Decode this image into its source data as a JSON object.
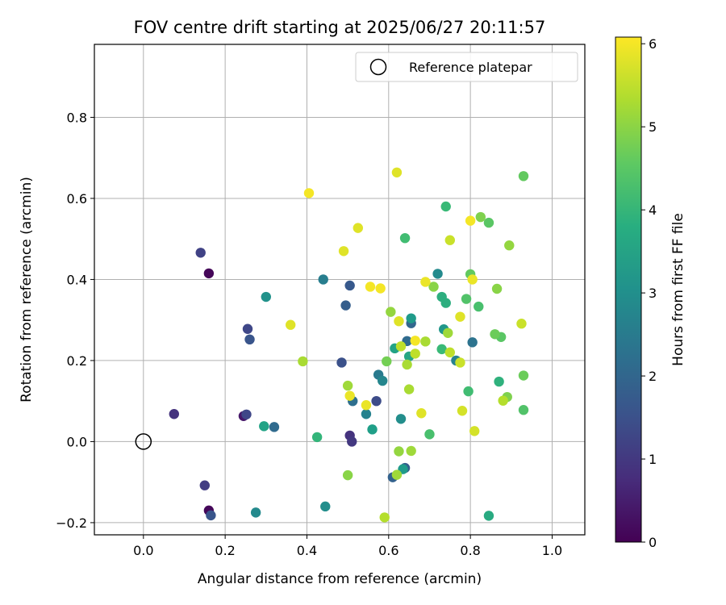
{
  "chart_data": {
    "type": "scatter",
    "title": "FOV centre drift starting at 2025/06/27 20:11:57",
    "xlabel": "Angular distance from reference (arcmin)",
    "ylabel": "Rotation from reference (arcmin)",
    "xlim": [
      -0.12,
      1.08
    ],
    "ylim": [
      -0.23,
      0.98
    ],
    "xticks": [
      0.0,
      0.2,
      0.4,
      0.6,
      0.8,
      1.0
    ],
    "xtick_labels": [
      "0.0",
      "0.2",
      "0.4",
      "0.6",
      "0.8",
      "1.0"
    ],
    "yticks": [
      -0.2,
      0.0,
      0.2,
      0.4,
      0.6,
      0.8
    ],
    "ytick_labels": [
      "−0.2",
      "0.0",
      "0.2",
      "0.4",
      "0.6",
      "0.8"
    ],
    "grid": true,
    "colormap": "viridis",
    "colorbar": {
      "label": "Hours from first FF file",
      "range": [
        0,
        6.08
      ],
      "ticks": [
        0,
        1,
        2,
        3,
        4,
        5,
        6
      ],
      "tick_labels": [
        "0",
        "1",
        "2",
        "3",
        "4",
        "5",
        "6"
      ]
    },
    "legend": {
      "placement": "top-right",
      "entries": [
        {
          "label": "Reference platepar",
          "marker": "open-circle"
        }
      ]
    },
    "reference_point": {
      "x": 0.0,
      "y": 0.0
    },
    "points": [
      {
        "x": 0.16,
        "y": 0.415,
        "h": 0.1
      },
      {
        "x": 0.16,
        "y": -0.17,
        "h": 0.1
      },
      {
        "x": 0.245,
        "y": 0.063,
        "h": 0.4
      },
      {
        "x": 0.075,
        "y": 0.068,
        "h": 0.9
      },
      {
        "x": 0.505,
        "y": 0.015,
        "h": 0.9
      },
      {
        "x": 0.51,
        "y": 0.0,
        "h": 1.0
      },
      {
        "x": 0.15,
        "y": -0.108,
        "h": 1.1
      },
      {
        "x": 0.14,
        "y": 0.466,
        "h": 1.2
      },
      {
        "x": 0.255,
        "y": 0.278,
        "h": 1.3
      },
      {
        "x": 0.252,
        "y": 0.067,
        "h": 1.3
      },
      {
        "x": 0.57,
        "y": 0.1,
        "h": 1.4
      },
      {
        "x": 0.485,
        "y": 0.195,
        "h": 1.5
      },
      {
        "x": 0.165,
        "y": -0.182,
        "h": 1.6
      },
      {
        "x": 0.26,
        "y": 0.252,
        "h": 1.6
      },
      {
        "x": 0.505,
        "y": 0.385,
        "h": 1.7
      },
      {
        "x": 0.495,
        "y": 0.336,
        "h": 1.8
      },
      {
        "x": 0.64,
        "y": -0.065,
        "h": 1.8
      },
      {
        "x": 0.61,
        "y": -0.088,
        "h": 1.9
      },
      {
        "x": 0.655,
        "y": 0.292,
        "h": 2.0
      },
      {
        "x": 0.32,
        "y": 0.036,
        "h": 2.1
      },
      {
        "x": 0.645,
        "y": 0.248,
        "h": 2.1
      },
      {
        "x": 0.512,
        "y": 0.1,
        "h": 2.2
      },
      {
        "x": 0.805,
        "y": 0.245,
        "h": 2.3
      },
      {
        "x": 0.575,
        "y": 0.165,
        "h": 2.5
      },
      {
        "x": 0.44,
        "y": 0.4,
        "h": 2.6
      },
      {
        "x": 0.545,
        "y": 0.068,
        "h": 2.7
      },
      {
        "x": 0.765,
        "y": 0.2,
        "h": 2.7
      },
      {
        "x": 0.585,
        "y": 0.15,
        "h": 2.8
      },
      {
        "x": 0.72,
        "y": 0.414,
        "h": 2.9
      },
      {
        "x": 0.275,
        "y": -0.175,
        "h": 2.9
      },
      {
        "x": 0.63,
        "y": 0.056,
        "h": 3.0
      },
      {
        "x": 0.445,
        "y": -0.16,
        "h": 3.0
      },
      {
        "x": 0.3,
        "y": 0.357,
        "h": 3.1
      },
      {
        "x": 0.735,
        "y": 0.277,
        "h": 3.2
      },
      {
        "x": 0.655,
        "y": 0.304,
        "h": 3.3
      },
      {
        "x": 0.635,
        "y": -0.068,
        "h": 3.3
      },
      {
        "x": 0.56,
        "y": 0.03,
        "h": 3.4
      },
      {
        "x": 0.295,
        "y": 0.038,
        "h": 3.5
      },
      {
        "x": 0.615,
        "y": 0.23,
        "h": 3.5
      },
      {
        "x": 0.65,
        "y": 0.21,
        "h": 3.6
      },
      {
        "x": 0.845,
        "y": -0.183,
        "h": 3.7
      },
      {
        "x": 0.73,
        "y": 0.357,
        "h": 3.8
      },
      {
        "x": 0.74,
        "y": 0.342,
        "h": 3.8
      },
      {
        "x": 0.87,
        "y": 0.148,
        "h": 3.9
      },
      {
        "x": 0.425,
        "y": 0.011,
        "h": 4.0
      },
      {
        "x": 0.74,
        "y": 0.58,
        "h": 4.1
      },
      {
        "x": 0.73,
        "y": 0.228,
        "h": 4.1
      },
      {
        "x": 0.795,
        "y": 0.124,
        "h": 4.2
      },
      {
        "x": 0.64,
        "y": 0.502,
        "h": 4.2
      },
      {
        "x": 0.82,
        "y": 0.333,
        "h": 4.3
      },
      {
        "x": 0.7,
        "y": 0.018,
        "h": 4.3
      },
      {
        "x": 0.93,
        "y": 0.078,
        "h": 4.4
      },
      {
        "x": 0.79,
        "y": 0.352,
        "h": 4.4
      },
      {
        "x": 0.845,
        "y": 0.54,
        "h": 4.5
      },
      {
        "x": 0.875,
        "y": 0.258,
        "h": 4.5
      },
      {
        "x": 0.8,
        "y": 0.413,
        "h": 4.6
      },
      {
        "x": 0.93,
        "y": 0.655,
        "h": 4.6
      },
      {
        "x": 0.93,
        "y": 0.163,
        "h": 4.7
      },
      {
        "x": 0.86,
        "y": 0.265,
        "h": 4.7
      },
      {
        "x": 0.595,
        "y": 0.198,
        "h": 4.8
      },
      {
        "x": 0.825,
        "y": 0.554,
        "h": 4.9
      },
      {
        "x": 0.89,
        "y": 0.11,
        "h": 4.9
      },
      {
        "x": 0.865,
        "y": 0.377,
        "h": 5.0
      },
      {
        "x": 0.71,
        "y": 0.382,
        "h": 5.0
      },
      {
        "x": 0.5,
        "y": -0.083,
        "h": 5.0
      },
      {
        "x": 0.625,
        "y": -0.024,
        "h": 5.1
      },
      {
        "x": 0.605,
        "y": 0.32,
        "h": 5.1
      },
      {
        "x": 0.895,
        "y": 0.484,
        "h": 5.1
      },
      {
        "x": 0.62,
        "y": -0.082,
        "h": 5.2
      },
      {
        "x": 0.655,
        "y": -0.023,
        "h": 5.2
      },
      {
        "x": 0.5,
        "y": 0.138,
        "h": 5.2
      },
      {
        "x": 0.745,
        "y": 0.268,
        "h": 5.2
      },
      {
        "x": 0.39,
        "y": 0.198,
        "h": 5.3
      },
      {
        "x": 0.645,
        "y": 0.19,
        "h": 5.3
      },
      {
        "x": 0.69,
        "y": 0.247,
        "h": 5.3
      },
      {
        "x": 0.65,
        "y": 0.129,
        "h": 5.3
      },
      {
        "x": 0.88,
        "y": 0.101,
        "h": 5.4
      },
      {
        "x": 0.59,
        "y": -0.187,
        "h": 5.4
      },
      {
        "x": 0.63,
        "y": 0.235,
        "h": 5.5
      },
      {
        "x": 0.665,
        "y": 0.217,
        "h": 5.5
      },
      {
        "x": 0.75,
        "y": 0.22,
        "h": 5.5
      },
      {
        "x": 0.775,
        "y": 0.195,
        "h": 5.6
      },
      {
        "x": 0.925,
        "y": 0.291,
        "h": 5.6
      },
      {
        "x": 0.75,
        "y": 0.497,
        "h": 5.6
      },
      {
        "x": 0.81,
        "y": 0.026,
        "h": 5.7
      },
      {
        "x": 0.78,
        "y": 0.076,
        "h": 5.7
      },
      {
        "x": 0.62,
        "y": 0.664,
        "h": 5.8
      },
      {
        "x": 0.68,
        "y": 0.07,
        "h": 5.8
      },
      {
        "x": 0.525,
        "y": 0.527,
        "h": 5.8
      },
      {
        "x": 0.49,
        "y": 0.47,
        "h": 5.8
      },
      {
        "x": 0.36,
        "y": 0.288,
        "h": 5.8
      },
      {
        "x": 0.625,
        "y": 0.297,
        "h": 5.8
      },
      {
        "x": 0.775,
        "y": 0.308,
        "h": 5.8
      },
      {
        "x": 0.545,
        "y": 0.09,
        "h": 5.9
      },
      {
        "x": 0.69,
        "y": 0.394,
        "h": 5.9
      },
      {
        "x": 0.805,
        "y": 0.4,
        "h": 5.9
      },
      {
        "x": 0.505,
        "y": 0.113,
        "h": 5.9
      },
      {
        "x": 0.405,
        "y": 0.613,
        "h": 6.0
      },
      {
        "x": 0.555,
        "y": 0.382,
        "h": 6.0
      },
      {
        "x": 0.58,
        "y": 0.378,
        "h": 6.0
      },
      {
        "x": 0.8,
        "y": 0.545,
        "h": 6.0
      },
      {
        "x": 0.665,
        "y": 0.249,
        "h": 6.0
      }
    ]
  }
}
